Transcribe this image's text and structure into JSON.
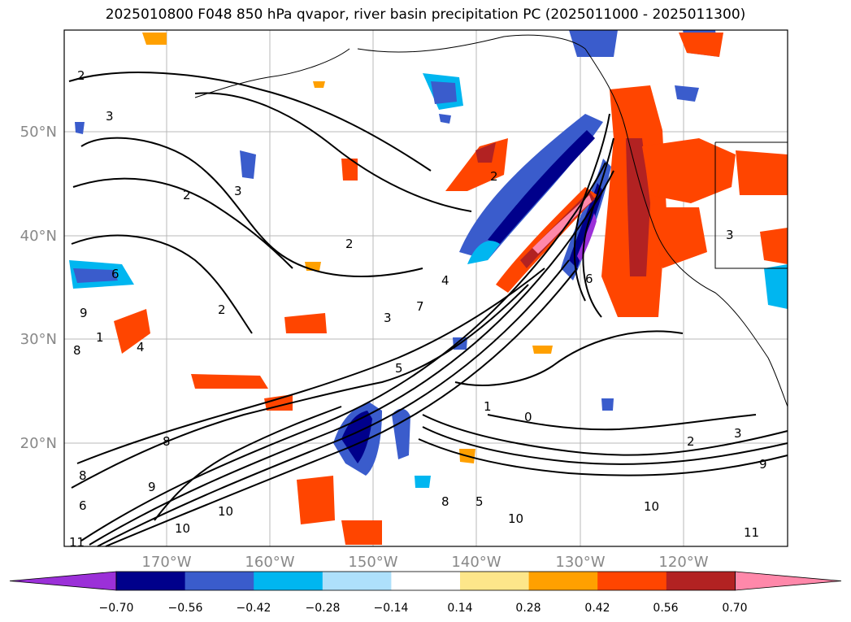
{
  "title": "2025010800 F048 850 hPa qvapor, river basin precipitation PC (2025011000 - 2025011300)",
  "map": {
    "lon_ticks": [
      "170°W",
      "160°W",
      "150°W",
      "140°W",
      "130°W",
      "120°W"
    ],
    "lat_ticks": [
      "50°N",
      "40°N",
      "30°N",
      "20°N"
    ],
    "contour_labels": [
      "2",
      "3",
      "2",
      "3",
      "2",
      "2",
      "6",
      "9",
      "8",
      "4",
      "2",
      "4",
      "3",
      "1",
      "8",
      "8",
      "7",
      "6",
      "5",
      "10",
      "9",
      "8",
      "5",
      "10",
      "11",
      "10",
      "3",
      "2",
      "1",
      "0",
      "3",
      "9",
      "10",
      "11",
      "6"
    ]
  },
  "colorbar": {
    "colors": [
      "#9b30d8",
      "#00008b",
      "#3a5ccc",
      "#00b6f0",
      "#aee0fb",
      "#ffffff",
      "#fde68a",
      "#ffa000",
      "#ff4500",
      "#b22222",
      "#ff88aa"
    ],
    "tick_labels": [
      "−0.70",
      "−0.56",
      "−0.42",
      "−0.28",
      "−0.14",
      "0.14",
      "0.28",
      "0.42",
      "0.56",
      "0.70"
    ]
  }
}
